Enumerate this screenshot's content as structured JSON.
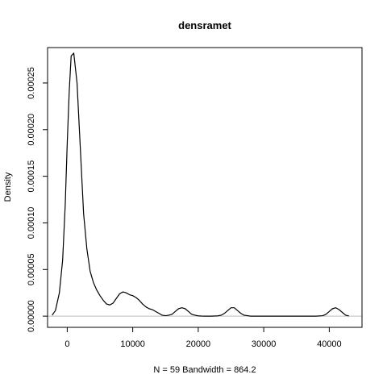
{
  "chart_data": {
    "type": "line",
    "title": "densramet",
    "xlabel": "N = 59   Bandwidth = 864.2",
    "ylabel": "Density",
    "xlim": [
      -3000,
      45000
    ],
    "ylim": [
      -1.2e-05,
      0.000288
    ],
    "x_ticks": [
      0,
      10000,
      20000,
      30000,
      40000
    ],
    "x_tick_labels": [
      "0",
      "10000",
      "20000",
      "30000",
      "40000"
    ],
    "y_ticks": [
      0,
      5e-05,
      0.0001,
      0.00015,
      0.0002,
      0.00025
    ],
    "y_tick_labels": [
      "0.00000",
      "0.00005",
      "0.00010",
      "0.00015",
      "0.00020",
      "0.00025"
    ],
    "baseline": 0,
    "grid": false,
    "legend": "none",
    "colors": {
      "line": "#000000",
      "baseline": "#bebebe",
      "frame": "#000000"
    },
    "series": [
      {
        "x": [
          -2300,
          -1800,
          -1200,
          -700,
          -300,
          0,
          300,
          600,
          1000,
          1500,
          2000,
          2500,
          3000,
          3500,
          4000,
          4500,
          5000,
          5500,
          6000,
          6500,
          7000,
          7500,
          8000,
          8500,
          9000,
          9500,
          10000,
          10500,
          11000,
          11500,
          12000,
          12500,
          13000,
          13500,
          14000,
          14500,
          15000,
          15500,
          16000,
          16500,
          17000,
          17500,
          18000,
          18500,
          19000,
          19500,
          20000,
          20500,
          21000,
          22000,
          23000,
          23500,
          24000,
          24500,
          25000,
          25500,
          26000,
          26500,
          27000,
          28000,
          30000,
          34000,
          38000,
          39000,
          39500,
          40000,
          40500,
          41000,
          41500,
          42000,
          42500,
          43000
        ],
        "y": [
          1e-06,
          6e-06,
          2.5e-05,
          6e-05,
          0.00012,
          0.000185,
          0.00024,
          0.000279,
          0.000282,
          0.00025,
          0.00018,
          0.00011,
          7.2e-05,
          4.8e-05,
          3.6e-05,
          2.8e-05,
          2.2e-05,
          1.7e-05,
          1.3e-05,
          1.2e-05,
          1.4e-05,
          1.9e-05,
          2.4e-05,
          2.6e-05,
          2.5e-05,
          2.3e-05,
          2.2e-05,
          2e-05,
          1.7e-05,
          1.3e-05,
          1e-05,
          8e-06,
          7e-06,
          5e-06,
          3e-06,
          1e-06,
          5e-07,
          1e-06,
          2e-06,
          5e-06,
          8e-06,
          9e-06,
          8e-06,
          5e-06,
          2e-06,
          1e-06,
          3e-07,
          1e-07,
          0.0,
          0.0,
          3e-07,
          1e-06,
          3e-06,
          6e-06,
          9e-06,
          9e-06,
          6e-06,
          3e-06,
          1e-06,
          0.0,
          0.0,
          0.0,
          0.0,
          5e-07,
          2e-06,
          5e-06,
          8e-06,
          9e-06,
          7e-06,
          4e-06,
          1e-06,
          2e-07
        ]
      }
    ]
  }
}
